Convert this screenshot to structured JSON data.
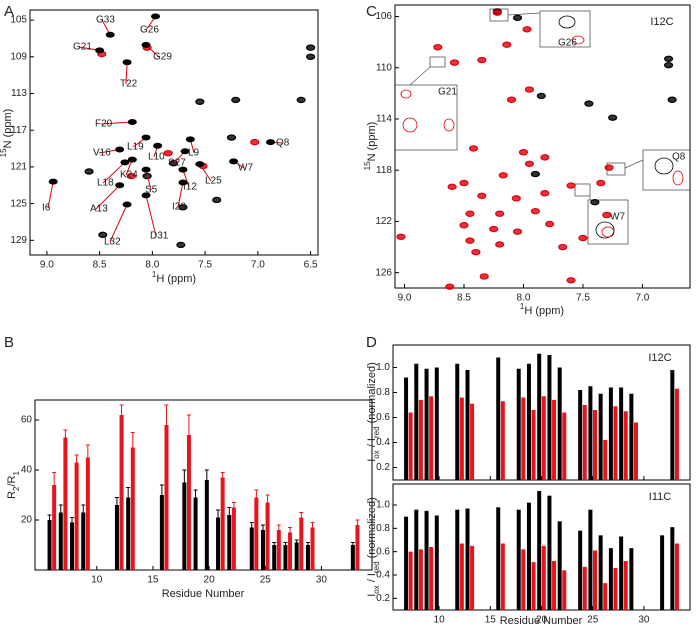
{
  "chart_data": [
    {
      "type": "scatter",
      "panel": "A",
      "xlabel": [
        "1",
        "H (ppm)"
      ],
      "ylabel": [
        "15",
        "N (ppm)"
      ],
      "xlim": [
        9.16,
        6.43
      ],
      "xticks": [
        {
          "value": 9,
          "label": "9.0"
        },
        8.5,
        {
          "value": 8,
          "label": "8.0"
        },
        7.5,
        {
          "value": 7,
          "label": "7.0"
        },
        6.5
      ],
      "ylim": [
        130.6,
        103.9
      ],
      "yticks": [
        105,
        109,
        113,
        117,
        121,
        125,
        129
      ],
      "series": [
        {
          "color": "#000000",
          "x": [
            6.5,
            6.5,
            6.59,
            7.21,
            7.55,
            7.25,
            7.73,
            8.47,
            7.71,
            7.39,
            8.6,
            8.05,
            7.8
          ],
          "y": [
            108.0,
            109.0,
            113.7,
            113.7,
            113.9,
            117.8,
            129.5,
            128.4,
            125.4,
            124.6,
            121.5,
            122.0,
            120.6
          ]
        },
        {
          "color": "#e0000b",
          "x": [
            8.48,
            8.05,
            7.03,
            7.52,
            7.85,
            8.2
          ],
          "y": [
            108.7,
            108.0,
            118.3,
            120.9,
            119.5,
            122.0
          ]
        }
      ],
      "peak_labels": {
        "labels": [
          "G33",
          "G26",
          "G21",
          "G29",
          "T22",
          "F20",
          "L19",
          "V16",
          "L10",
          "S27",
          "L9",
          "K24",
          "L18",
          "S5",
          "I12",
          "L25",
          "W7",
          "Q8",
          "I28",
          "A13",
          "L32",
          "D31",
          "I6"
        ],
        "x": [
          8.4,
          7.97,
          8.5,
          8.06,
          8.24,
          8.19,
          8.06,
          8.31,
          7.95,
          7.69,
          7.64,
          8.19,
          8.26,
          8.06,
          7.71,
          7.55,
          7.23,
          6.88,
          7.71,
          8.31,
          8.24,
          8.06,
          8.94
        ],
        "y": [
          106.6,
          104.6,
          108.3,
          107.7,
          109.6,
          116.1,
          117.8,
          119.1,
          118.7,
          119.3,
          118.0,
          120.2,
          120.5,
          121.3,
          121.3,
          120.7,
          120.4,
          118.3,
          122.7,
          123.0,
          125.1,
          124.1,
          122.6
        ]
      }
    },
    {
      "type": "scatter",
      "panel": "C",
      "annotation": "I12C",
      "xlabel": [
        "1",
        "H (ppm)"
      ],
      "ylabel": [
        "15",
        "N (ppm)"
      ],
      "xlim": [
        9.08,
        6.6
      ],
      "xticks": [
        {
          "value": 9,
          "label": "9.0"
        },
        8.5,
        {
          "value": 8,
          "label": "8.0"
        },
        7.5,
        {
          "value": 7,
          "label": "7.0"
        }
      ],
      "ylim": [
        127.2,
        105.1
      ],
      "yticks": [
        106,
        110,
        114,
        118,
        122,
        126
      ],
      "series": [
        {
          "color": "#000000",
          "x": [
            8.22,
            8.05,
            6.78,
            6.78,
            6.75,
            7.85,
            7.45,
            7.25,
            7.9,
            7.4
          ],
          "y": [
            105.6,
            106.1,
            109.3,
            109.8,
            112.5,
            112.2,
            112.8,
            113.9,
            118.3,
            120.5
          ]
        },
        {
          "color": "#e0000b",
          "x": [
            8.72,
            8.58,
            8.35,
            8.14,
            7.97,
            8.22,
            8.1,
            7.95,
            8.42,
            8.0,
            7.82,
            7.95,
            8.17,
            8.5,
            8.6,
            8.35,
            8.06,
            7.82,
            7.6,
            7.35,
            7.28,
            8.45,
            8.2,
            7.9,
            8.5,
            8.25,
            8.05,
            7.78,
            8.45,
            8.2,
            8.4,
            9.03,
            8.33,
            7.67,
            7.5,
            7.6,
            8.62,
            7.3
          ],
          "y": [
            108.4,
            109.6,
            109.4,
            108.2,
            107.0,
            105.7,
            112.5,
            111.7,
            116.3,
            116.6,
            117.0,
            117.5,
            118.4,
            119.0,
            119.3,
            120.0,
            120.2,
            119.8,
            119.2,
            119.0,
            117.8,
            121.4,
            121.4,
            121.2,
            122.3,
            122.6,
            122.8,
            122.2,
            123.5,
            123.8,
            124.4,
            123.2,
            126.3,
            124.0,
            123.3,
            126.6,
            127.1,
            121.5
          ]
        }
      ],
      "inset_labels": [
        "G26",
        "G21",
        "Q8",
        "W7"
      ]
    },
    {
      "type": "bar",
      "panel": "B",
      "xlabel": "Residue Number",
      "ylabel": [
        "R",
        "2",
        "/R",
        "1"
      ],
      "xlim": [
        4.5,
        34.5
      ],
      "xticks": [
        10,
        15,
        20,
        25,
        30
      ],
      "ylim": [
        0,
        68
      ],
      "yticks": [
        20,
        40,
        60
      ],
      "x": [
        6,
        7,
        8,
        9,
        12,
        13,
        16,
        18,
        19,
        20,
        21,
        22,
        24,
        25,
        26,
        27,
        28,
        29,
        33
      ],
      "series": [
        {
          "color": "#000000",
          "values": [
            20,
            23,
            19,
            23,
            26,
            29,
            30,
            35,
            29,
            36,
            21,
            22,
            17,
            16,
            10,
            10,
            11,
            10,
            10
          ],
          "errors": [
            2,
            3,
            2,
            3,
            3,
            4,
            4,
            5,
            3,
            4,
            3,
            3,
            2,
            2,
            1,
            1,
            1,
            1,
            1
          ]
        },
        {
          "color": "#e8141c",
          "values": [
            34,
            53,
            43,
            45,
            62,
            49,
            58,
            54,
            null,
            null,
            37,
            25,
            29,
            27,
            16,
            15,
            21,
            17,
            18
          ],
          "errors": [
            5,
            3,
            3,
            5,
            4,
            6,
            8,
            8,
            null,
            null,
            2,
            2,
            3,
            3,
            2,
            2,
            2,
            2,
            2
          ]
        }
      ]
    },
    {
      "type": "bar",
      "panel": "D",
      "annotation": "I12C",
      "ylabel": [
        "I",
        "ox",
        " / I",
        "red",
        " (normalized)"
      ],
      "xlim": [
        5.5,
        34.5
      ],
      "xticks": [
        10,
        15,
        20,
        25,
        30
      ],
      "xtick_labels": false,
      "ylim": [
        0.1,
        1.18
      ],
      "yticks": [
        0.2,
        0.4,
        0.6,
        0.8,
        {
          "value": 1,
          "label": "1.0"
        }
      ],
      "x": [
        7,
        8,
        9,
        10,
        12,
        13,
        16,
        18,
        19,
        20,
        21,
        22,
        24,
        25,
        26,
        27,
        28,
        29,
        33
      ],
      "series": [
        {
          "color": "#000000",
          "values": [
            0.92,
            1.03,
            0.99,
            1.0,
            1.03,
            0.98,
            1.08,
            0.99,
            1.03,
            1.11,
            1.1,
            1.0,
            0.82,
            0.85,
            0.79,
            0.84,
            0.84,
            0.79,
            0.98
          ]
        },
        {
          "color": "#e8141c",
          "values": [
            0.64,
            0.74,
            0.77,
            null,
            0.76,
            0.71,
            0.73,
            0.76,
            0.66,
            0.77,
            0.74,
            0.64,
            0.7,
            0.66,
            0.42,
            0.69,
            0.65,
            0.56,
            0.83
          ]
        }
      ]
    },
    {
      "type": "bar",
      "annotation": "I11C",
      "xlabel": "Residue Number",
      "ylabel": [
        "I",
        "ox",
        " / I",
        "red",
        " (normalized)"
      ],
      "xlim": [
        5.5,
        34.5
      ],
      "xticks": [
        10,
        15,
        20,
        25,
        30
      ],
      "ylim": [
        0.1,
        1.18
      ],
      "yticks": [
        0.2,
        0.4,
        0.6,
        0.8,
        {
          "value": 1,
          "label": "1.0"
        }
      ],
      "x": [
        7,
        8,
        9,
        10,
        12,
        13,
        16,
        18,
        19,
        20,
        21,
        22,
        24,
        25,
        26,
        27,
        28,
        29,
        32,
        33
      ],
      "series": [
        {
          "color": "#000000",
          "values": [
            0.9,
            0.96,
            0.95,
            0.91,
            0.96,
            0.97,
            0.98,
            0.96,
            1.02,
            1.12,
            1.08,
            0.86,
            0.78,
            0.96,
            0.74,
            0.63,
            0.73,
            0.63,
            0.74,
            0.81
          ]
        },
        {
          "color": "#e8141c",
          "values": [
            0.6,
            0.62,
            0.64,
            null,
            0.67,
            0.65,
            0.67,
            0.62,
            0.51,
            0.65,
            0.52,
            0.44,
            0.47,
            0.61,
            0.33,
            0.46,
            0.52,
            null,
            null,
            0.67
          ]
        }
      ]
    }
  ]
}
